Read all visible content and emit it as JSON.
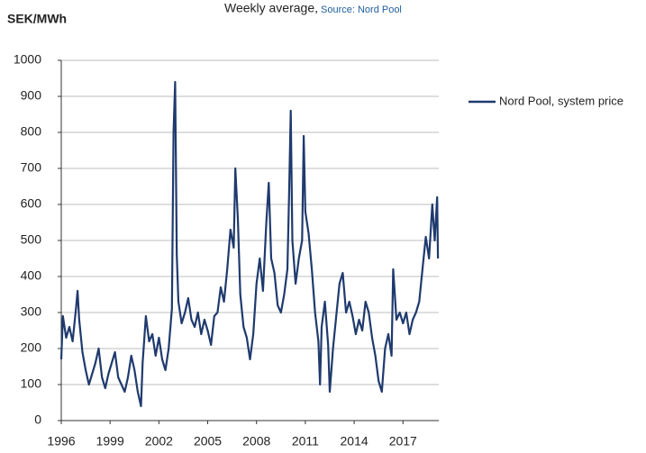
{
  "chart_data": {
    "type": "line",
    "title": "Weekly average,",
    "subtitle": "Source: Nord Pool",
    "y_label": "SEK/MWh",
    "x": [
      1996.0,
      1996.1,
      1996.3,
      1996.5,
      1996.7,
      1996.9,
      1997.0,
      1997.1,
      1997.3,
      1997.5,
      1997.7,
      1997.9,
      1998.1,
      1998.3,
      1998.5,
      1998.7,
      1998.9,
      1999.1,
      1999.3,
      1999.5,
      1999.7,
      1999.9,
      2000.1,
      2000.3,
      2000.5,
      2000.7,
      2000.9,
      2001.0,
      2001.2,
      2001.4,
      2001.6,
      2001.8,
      2002.0,
      2002.2,
      2002.4,
      2002.6,
      2002.8,
      2002.9,
      2003.0,
      2003.1,
      2003.2,
      2003.4,
      2003.6,
      2003.8,
      2004.0,
      2004.2,
      2004.4,
      2004.6,
      2004.8,
      2005.0,
      2005.2,
      2005.4,
      2005.6,
      2005.8,
      2006.0,
      2006.2,
      2006.4,
      2006.6,
      2006.7,
      2006.85,
      2007.0,
      2007.2,
      2007.4,
      2007.6,
      2007.8,
      2008.0,
      2008.2,
      2008.4,
      2008.6,
      2008.75,
      2008.9,
      2009.1,
      2009.3,
      2009.5,
      2009.7,
      2009.9,
      2010.0,
      2010.1,
      2010.2,
      2010.4,
      2010.6,
      2010.8,
      2010.9,
      2011.0,
      2011.2,
      2011.4,
      2011.6,
      2011.8,
      2011.9,
      2012.0,
      2012.2,
      2012.4,
      2012.5,
      2012.7,
      2012.9,
      2013.1,
      2013.3,
      2013.5,
      2013.7,
      2013.9,
      2014.1,
      2014.3,
      2014.5,
      2014.7,
      2014.9,
      2015.1,
      2015.3,
      2015.5,
      2015.7,
      2015.9,
      2016.1,
      2016.3,
      2016.4,
      2016.6,
      2016.8,
      2017.0,
      2017.2,
      2017.4,
      2017.6,
      2017.8,
      2018.0,
      2018.2,
      2018.4,
      2018.6,
      2018.8,
      2018.95,
      2019.1,
      2019.15
    ],
    "series": [
      {
        "name": "Nord Pool, system price",
        "color": "#1f3a6e",
        "values": [
          170,
          290,
          230,
          260,
          220,
          310,
          360,
          280,
          190,
          140,
          100,
          130,
          160,
          200,
          120,
          90,
          130,
          160,
          190,
          120,
          100,
          80,
          120,
          180,
          140,
          80,
          40,
          160,
          290,
          220,
          240,
          180,
          230,
          170,
          140,
          200,
          310,
          800,
          940,
          460,
          330,
          270,
          300,
          340,
          280,
          260,
          300,
          240,
          280,
          250,
          210,
          290,
          300,
          370,
          330,
          420,
          530,
          480,
          700,
          560,
          350,
          260,
          230,
          170,
          240,
          380,
          450,
          360,
          550,
          660,
          450,
          410,
          320,
          300,
          350,
          420,
          620,
          860,
          500,
          380,
          450,
          500,
          790,
          580,
          520,
          420,
          300,
          220,
          100,
          260,
          330,
          210,
          80,
          200,
          290,
          380,
          410,
          300,
          330,
          290,
          240,
          280,
          250,
          330,
          300,
          230,
          180,
          110,
          80,
          200,
          240,
          180,
          420,
          280,
          300,
          270,
          300,
          240,
          280,
          300,
          330,
          420,
          510,
          450,
          600,
          500,
          620,
          450
        ]
      }
    ],
    "xlim": [
      1996,
      2019.2
    ],
    "xticks": [
      1996,
      1999,
      2002,
      2005,
      2008,
      2011,
      2014,
      2017
    ],
    "ylim": [
      0,
      1000
    ],
    "yticks": [
      0,
      100,
      200,
      300,
      400,
      500,
      600,
      700,
      800,
      900,
      1000
    ],
    "grid": true
  }
}
